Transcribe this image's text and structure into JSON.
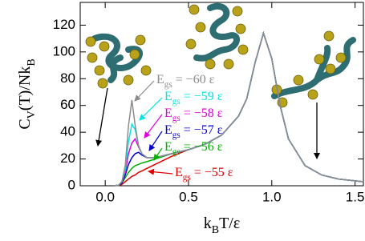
{
  "chart_data": {
    "type": "line",
    "xlabel": [
      "k",
      "B",
      "T/ε"
    ],
    "ylabel": [
      "C",
      "V",
      "(T)/Nk",
      "B"
    ],
    "x": [
      0.05,
      0.08,
      0.1,
      0.12,
      0.14,
      0.16,
      0.18,
      0.2,
      0.22,
      0.25,
      0.3,
      0.4,
      0.5,
      0.6,
      0.7,
      0.8,
      0.85,
      0.9,
      0.95,
      1.0,
      1.05,
      1.1,
      1.2,
      1.3,
      1.4,
      1.55
    ],
    "series": [
      {
        "label": [
          "E",
          "gs",
          " = −60 ε"
        ],
        "color": "#8c8c8c",
        "values": [
          0,
          0.5,
          3,
          15,
          45,
          64,
          45,
          30,
          24,
          21,
          21,
          24,
          27,
          31,
          38,
          52,
          65,
          92,
          114,
          95,
          60,
          35,
          15,
          8,
          5,
          3
        ]
      },
      {
        "label": [
          "E",
          "gs",
          " = −59 ε"
        ],
        "color": "#00e5e5",
        "values": [
          0,
          0.5,
          3,
          12,
          33,
          46,
          42,
          30,
          24,
          21,
          21,
          24,
          27,
          31,
          38,
          52,
          65,
          92,
          114,
          95,
          60,
          35,
          15,
          8,
          5,
          3
        ]
      },
      {
        "label": [
          "E",
          "gs",
          " = −58 ε"
        ],
        "color": "#e000e0",
        "values": [
          0,
          0.5,
          3,
          10,
          24,
          32,
          35,
          29,
          24,
          21,
          21,
          24,
          27,
          31,
          38,
          52,
          65,
          92,
          114,
          95,
          60,
          35,
          15,
          8,
          5,
          3
        ]
      },
      {
        "label": [
          "E",
          "gs",
          " = −57 ε"
        ],
        "color": "#0000d0",
        "values": [
          0,
          0.4,
          2,
          8,
          16,
          21,
          24,
          25,
          23,
          21,
          21,
          24,
          27,
          31,
          38,
          52,
          65,
          92,
          114,
          95,
          60,
          35,
          15,
          8,
          5,
          3
        ]
      },
      {
        "label": [
          "E",
          "gs",
          " = −56 ε"
        ],
        "color": "#00b000",
        "values": [
          0,
          0.3,
          2,
          6,
          10,
          13,
          15,
          16,
          17,
          18,
          20,
          24,
          27,
          31,
          38,
          52,
          65,
          92,
          114,
          95,
          60,
          35,
          15,
          8,
          5,
          3
        ]
      },
      {
        "label": [
          "E",
          "gs",
          " = −55 ε"
        ],
        "color": "#e00000",
        "values": [
          0,
          0.2,
          1,
          3,
          5,
          7,
          8,
          10,
          11,
          13,
          16,
          22,
          27,
          31,
          38,
          52,
          65,
          92,
          114,
          95,
          60,
          35,
          15,
          8,
          5,
          3
        ]
      }
    ],
    "xlim": [
      -0.15,
      1.55
    ],
    "xticks": [
      {
        "value": 0,
        "label": "0.0"
      },
      {
        "value": 0.5,
        "label": "0.5"
      },
      {
        "value": 1,
        "label": "1.0"
      },
      {
        "value": 1.5,
        "label": "1.5"
      }
    ],
    "ylim": [
      0,
      137
    ],
    "yticks": [
      0,
      20,
      40,
      60,
      80,
      100,
      120
    ]
  }
}
